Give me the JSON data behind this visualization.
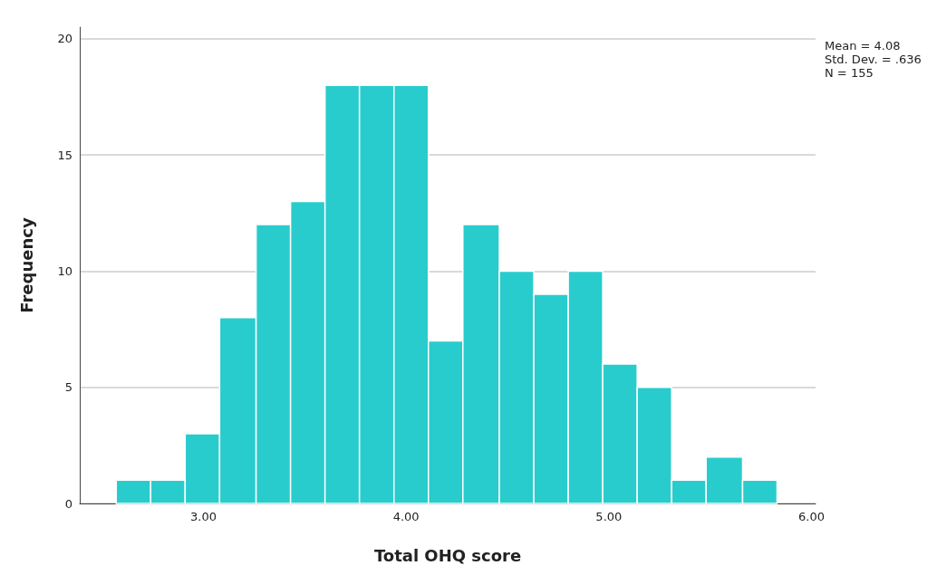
{
  "chart_data": {
    "type": "histogram",
    "xlabel": "Total OHQ score",
    "ylabel": "Frequency",
    "bins": [
      2.57,
      2.74,
      2.91,
      3.08,
      3.26,
      3.43,
      3.6,
      3.77,
      3.94,
      4.11,
      4.28,
      4.46,
      4.63,
      4.8,
      4.97,
      5.14,
      5.31,
      5.48,
      5.66,
      5.83
    ],
    "values": [
      1,
      1,
      3,
      8,
      12,
      13,
      18,
      18,
      18,
      7,
      12,
      10,
      9,
      10,
      6,
      5,
      1,
      2,
      1
    ],
    "color": "#29cccc",
    "xlim": [
      2.39,
      6.02
    ],
    "xticks": [
      {
        "value": 3,
        "label": "3.00"
      },
      {
        "value": 4,
        "label": "4.00"
      },
      {
        "value": 5,
        "label": "5.00"
      },
      {
        "value": 6,
        "label": "6.00"
      }
    ],
    "ylim": [
      0,
      20.5
    ],
    "yticks": [
      0,
      5,
      10,
      15,
      20
    ],
    "grid": "y",
    "annotations": [
      "Mean = 4.08",
      "Std. Dev. = .636",
      "N = 155"
    ]
  }
}
